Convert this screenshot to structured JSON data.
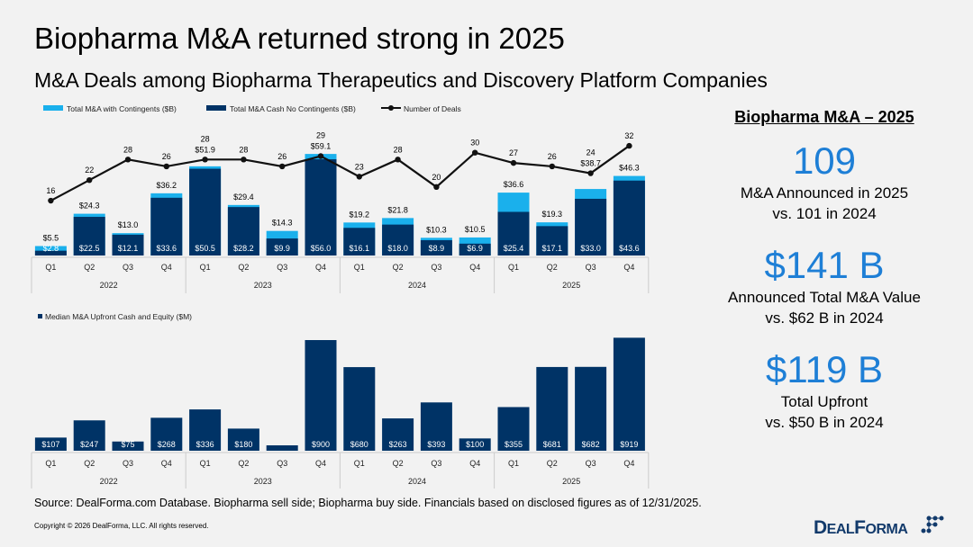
{
  "title": "Biopharma M&A returned strong in 2025",
  "subtitle": "M&A Deals among Biopharma Therapeutics and Discovery Platform Companies",
  "colors": {
    "contingent": "#1ab0ec",
    "cash": "#003366",
    "line": "#111111",
    "accent": "#1e7fd6"
  },
  "chart_data": [
    {
      "type": "bar",
      "stacked": true,
      "categories": [
        "Q1",
        "Q2",
        "Q3",
        "Q4",
        "Q1",
        "Q2",
        "Q3",
        "Q4",
        "Q1",
        "Q2",
        "Q3",
        "Q4",
        "Q1",
        "Q2",
        "Q3",
        "Q4"
      ],
      "years": [
        "2022",
        "2023",
        "2024",
        "2025"
      ],
      "legend_placement": "top-left",
      "series": [
        {
          "name": "Total M&A with Contingents ($B)",
          "type": "bar",
          "values": [
            5.5,
            24.3,
            13.0,
            36.2,
            51.9,
            29.4,
            14.3,
            59.1,
            19.2,
            21.8,
            10.3,
            10.5,
            36.6,
            19.3,
            38.7,
            46.3
          ],
          "labels": [
            "$5.5",
            "$24.3",
            "$13.0",
            "$36.2",
            "$51.9",
            "$29.4",
            "$14.3",
            "$59.1",
            "$19.2",
            "$21.8",
            "$10.3",
            "$10.5",
            "$36.6",
            "$19.3",
            "$38.7",
            "$46.3"
          ]
        },
        {
          "name": "Total M&A Cash No Contingents ($B)",
          "type": "bar",
          "values": [
            2.8,
            22.5,
            12.1,
            33.6,
            50.5,
            28.2,
            9.9,
            56.0,
            16.1,
            18.0,
            8.9,
            6.9,
            25.4,
            17.1,
            33.0,
            43.6
          ],
          "labels": [
            "$2.8",
            "$22.5",
            "$12.1",
            "$33.6",
            "$50.5",
            "$28.2",
            "$9.9",
            "$56.0",
            "$16.1",
            "$18.0",
            "$8.9",
            "$6.9",
            "$25.4",
            "$17.1",
            "$33.0",
            "$43.6"
          ]
        },
        {
          "name": "Number of Deals",
          "type": "line",
          "values": [
            16,
            22,
            28,
            26,
            28,
            28,
            26,
            29,
            23,
            28,
            20,
            30,
            27,
            26,
            24,
            32
          ],
          "labels": [
            "16",
            "22",
            "28",
            "26",
            "28",
            "28",
            "26",
            "29",
            "23",
            "28",
            "20",
            "30",
            "27",
            "26",
            "24",
            "32"
          ]
        }
      ]
    },
    {
      "type": "bar",
      "categories": [
        "Q1",
        "Q2",
        "Q3",
        "Q4",
        "Q1",
        "Q2",
        "Q3",
        "Q4",
        "Q1",
        "Q2",
        "Q3",
        "Q4",
        "Q1",
        "Q2",
        "Q3",
        "Q4"
      ],
      "years": [
        "2022",
        "2023",
        "2024",
        "2025"
      ],
      "legend_placement": "top-left",
      "series": [
        {
          "name": "Median M&A Upfront Cash and Equity ($M)",
          "values": [
            107,
            247,
            75,
            268,
            336,
            180,
            44,
            900,
            680,
            263,
            393,
            100,
            355,
            681,
            682,
            919
          ],
          "labels": [
            "$107",
            "$247",
            "$75",
            "$268",
            "$336",
            "$180",
            "",
            "$900",
            "$680",
            "$263",
            "$393",
            "$100",
            "$355",
            "$681",
            "$682",
            "$919"
          ]
        }
      ]
    }
  ],
  "panel": {
    "heading": "Biopharma M&A – 2025",
    "stats": [
      {
        "value": "109",
        "line1": "M&A Announced in 2025",
        "line2": "vs. 101 in 2024"
      },
      {
        "value": "$141 B",
        "line1": "Announced Total M&A Value",
        "line2": "vs. $62 B in 2024"
      },
      {
        "value": "$119 B",
        "line1": "Total Upfront",
        "line2": "vs. $50 B in 2024"
      }
    ]
  },
  "source": "Source: DealForma.com Database. Biopharma sell side; Biopharma buy side. Financials based on disclosed figures as of 12/31/2025.",
  "copyright": "Copyright © 2026 DealForma, LLC. All rights reserved.",
  "logo": "DEALFORMA"
}
